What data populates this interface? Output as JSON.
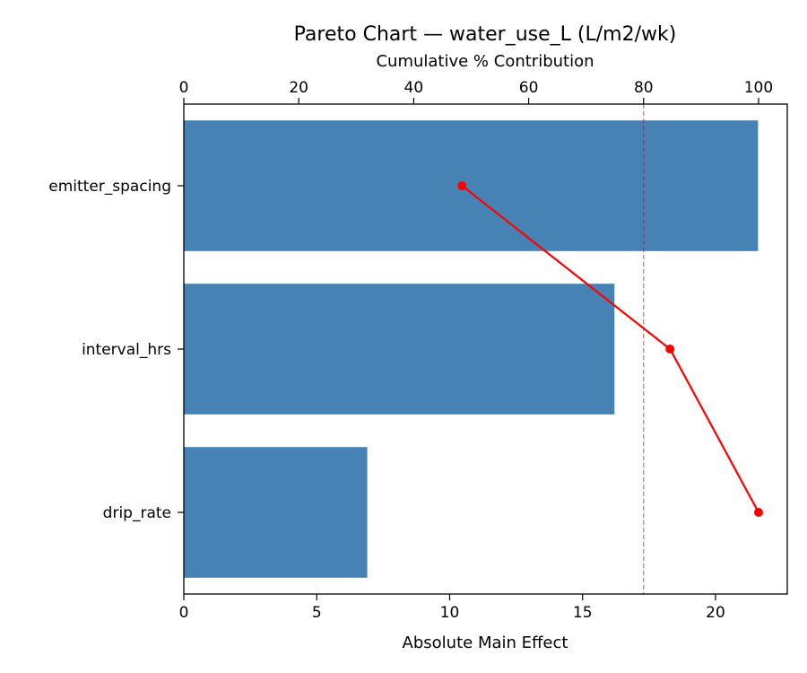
{
  "chart_data": {
    "type": "bar",
    "orientation": "horizontal",
    "title": "Pareto Chart — water_use_L (L/m2/wk)",
    "xlabel": "Absolute Main Effect",
    "x2label": "Cumulative % Contribution",
    "categories": [
      "emitter_spacing",
      "interval_hrs",
      "drip_rate"
    ],
    "series": [
      {
        "type": "bar",
        "axis": "bottom",
        "values": [
          21.6,
          16.2,
          6.9
        ],
        "color": "#4682b4"
      },
      {
        "type": "line",
        "axis": "top",
        "values": [
          48.4,
          84.6,
          100.0
        ],
        "color": "#ff0000"
      }
    ],
    "xlim": [
      0,
      22.7
    ],
    "xticks": [
      0,
      5,
      10,
      15,
      20
    ],
    "x2lim": [
      0,
      105
    ],
    "x2ticks": [
      0,
      20,
      40,
      60,
      80,
      100
    ],
    "threshold": {
      "value": 80,
      "axis": "top",
      "color": "#ff0000",
      "style": "dashed"
    },
    "grid": false
  }
}
